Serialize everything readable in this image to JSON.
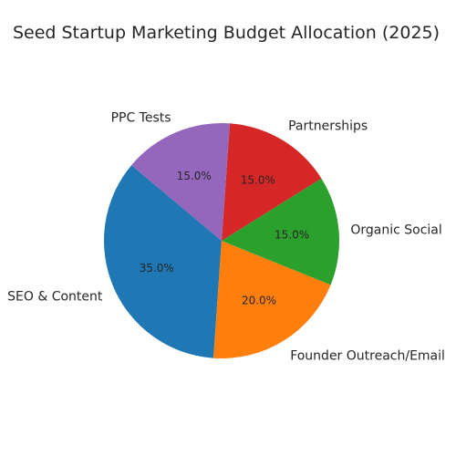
{
  "chart_data": {
    "type": "pie",
    "title": "Seed Startup Marketing Budget Allocation (2025)",
    "start_angle_deg": 140,
    "direction": "counterclockwise",
    "slices": [
      {
        "label": "SEO & Content",
        "value": 35.0,
        "pct_label": "35.0%",
        "color": "#1f77b4"
      },
      {
        "label": "Founder Outreach/Email",
        "value": 20.0,
        "pct_label": "20.0%",
        "color": "#ff7f0e"
      },
      {
        "label": "Organic Social",
        "value": 15.0,
        "pct_label": "15.0%",
        "color": "#2ca02c"
      },
      {
        "label": "Partnerships",
        "value": 15.0,
        "pct_label": "15.0%",
        "color": "#d62728"
      },
      {
        "label": "PPC Tests",
        "value": 15.0,
        "pct_label": "15.0%",
        "color": "#9467bd"
      }
    ]
  }
}
